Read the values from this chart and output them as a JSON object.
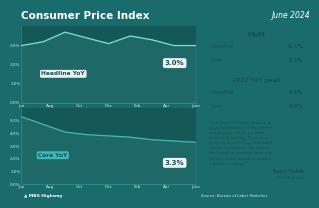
{
  "title": "Consumer Price Index",
  "date": "June 2024",
  "bg_color": "#1a6b6b",
  "chart_bg": "#155858",
  "panel_mom": "#b8e0e0",
  "panel_peak": "#9acece",
  "panel_quote": "#a8d8d8",
  "x_labels": [
    "Jun",
    "Aug",
    "Oct",
    "Dec",
    "Feb",
    "Apr",
    "June"
  ],
  "headline_yoy": [
    3.0,
    3.2,
    3.7,
    3.4,
    3.1,
    3.5,
    3.3,
    3.0,
    3.0
  ],
  "headline_final": "3.0%",
  "headline_ylim": [
    0.0,
    4.0
  ],
  "headline_yticks": [
    0.0,
    1.0,
    2.0,
    3.0
  ],
  "headline_yticklabels": [
    "0.0%",
    "1.0%",
    "2.0%",
    "3.0%"
  ],
  "core_yoy": [
    5.3,
    4.7,
    4.1,
    3.9,
    3.8,
    3.7,
    3.5,
    3.4,
    3.3
  ],
  "core_final": "3.3%",
  "core_ylim": [
    0.0,
    6.0
  ],
  "core_yticks": [
    0.0,
    1.0,
    2.0,
    3.0,
    4.0,
    5.0
  ],
  "core_yticklabels": [
    "0.0%",
    "1.0%",
    "2.0%",
    "3.0%",
    "4.0%",
    "5.0%"
  ],
  "line_color_headline": "#7de0d8",
  "line_color_core": "#40b8b8",
  "fill_color": "#3a9898",
  "mom_headline": "-0.1%",
  "mom_core": "0.1%",
  "peak_headline": "9.1%",
  "peak_core": "6.6%",
  "quote_text": "\"The June CPI finally showed a\nlarge moderation in the shelter\ncomponent, which we have\nbeen anticipating. There is a\nlong lag in reflecting real world\nmarket conditions. We expect\nthis trend to continue and help\nbring in more friendly monthly\ninflation readings.\"",
  "quote_author": "Barry Habib",
  "quote_role": "CEO, Highway",
  "source": "Source: Bureau of Labor Statistics",
  "logo_text": "MBS Highway",
  "text_dark": "#1a5050",
  "text_light": "#d0f0f0",
  "text_white": "#ffffff"
}
